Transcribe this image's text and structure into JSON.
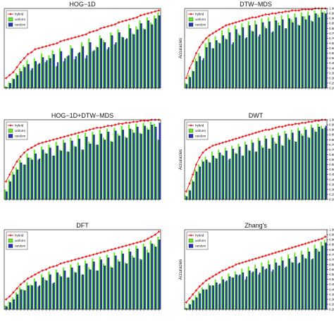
{
  "colors": {
    "hybrid": "#ee2222",
    "uniform": "#66ee22",
    "random": "#2233bb",
    "dark": "#1a3d5e"
  },
  "chart_data": [
    {
      "type": "bar",
      "title": "HOG−1D",
      "ylabel": "",
      "ylim": [
        0.2,
        1.0
      ],
      "yticks": [],
      "legend": [
        "hybrid",
        "uniform",
        "random"
      ],
      "legend_position": "top-left",
      "series": [
        {
          "name": "hybrid",
          "kind": "line",
          "values": [
            0.3,
            0.33,
            0.36,
            0.41,
            0.46,
            0.5,
            0.54,
            0.56,
            0.59,
            0.6,
            0.61,
            0.62,
            0.63,
            0.64,
            0.65,
            0.67,
            0.68,
            0.69,
            0.7,
            0.71,
            0.72,
            0.73,
            0.74,
            0.76,
            0.77,
            0.78,
            0.8,
            0.81,
            0.82,
            0.83,
            0.84,
            0.86,
            0.87,
            0.88,
            0.89,
            0.9,
            0.91,
            0.93,
            0.94,
            0.95,
            0.96,
            0.97,
            0.98
          ]
        },
        {
          "name": "uniform",
          "kind": "bar",
          "values": [
            0.22,
            0.26,
            0.3,
            0.35,
            0.4,
            0.43,
            0.48,
            0.38,
            0.5,
            0.44,
            0.55,
            0.46,
            0.53,
            0.58,
            0.42,
            0.6,
            0.47,
            0.52,
            0.63,
            0.49,
            0.55,
            0.66,
            0.5,
            0.7,
            0.57,
            0.62,
            0.73,
            0.68,
            0.59,
            0.76,
            0.64,
            0.79,
            0.72,
            0.69,
            0.84,
            0.75,
            0.82,
            0.88,
            0.8,
            0.91,
            0.86,
            0.93,
            0.96
          ]
        },
        {
          "name": "random",
          "kind": "bar",
          "values": [
            0.21,
            0.25,
            0.29,
            0.33,
            0.37,
            0.41,
            0.44,
            0.4,
            0.47,
            0.45,
            0.51,
            0.48,
            0.5,
            0.54,
            0.46,
            0.57,
            0.5,
            0.53,
            0.6,
            0.52,
            0.56,
            0.62,
            0.53,
            0.66,
            0.58,
            0.61,
            0.7,
            0.66,
            0.61,
            0.73,
            0.66,
            0.76,
            0.71,
            0.7,
            0.8,
            0.74,
            0.79,
            0.85,
            0.79,
            0.88,
            0.84,
            0.9,
            0.93
          ]
        }
      ]
    },
    {
      "type": "bar",
      "title": "DTW−MDS",
      "ylabel": "Accuracies",
      "ylim": [
        0.2,
        1.0
      ],
      "yticks": [
        "0.20",
        "0.25",
        "0.30",
        "0.35",
        "0.40",
        "0.45",
        "0.50",
        "0.55",
        "0.60",
        "0.65",
        "0.70",
        "0.75",
        "0.80",
        "0.85",
        "0.90",
        "0.95",
        "1.00"
      ],
      "legend": [
        "hybrid",
        "uniform",
        "random"
      ],
      "legend_position": "top-left",
      "series": [
        {
          "name": "hybrid",
          "kind": "line",
          "values": [
            0.3,
            0.4,
            0.47,
            0.55,
            0.61,
            0.66,
            0.7,
            0.73,
            0.75,
            0.77,
            0.79,
            0.81,
            0.83,
            0.84,
            0.85,
            0.86,
            0.87,
            0.88,
            0.89,
            0.9,
            0.91,
            0.91,
            0.92,
            0.93,
            0.94,
            0.94,
            0.95,
            0.95,
            0.96,
            0.96,
            0.97,
            0.97,
            0.98,
            0.98,
            0.98,
            0.99,
            0.99,
            0.99,
            0.99,
            1.0,
            1.0,
            1.0,
            1.0
          ]
        },
        {
          "name": "uniform",
          "kind": "bar",
          "values": [
            0.25,
            0.33,
            0.38,
            0.5,
            0.55,
            0.48,
            0.65,
            0.7,
            0.6,
            0.72,
            0.66,
            0.78,
            0.7,
            0.8,
            0.64,
            0.83,
            0.75,
            0.85,
            0.7,
            0.87,
            0.78,
            0.88,
            0.72,
            0.9,
            0.82,
            0.91,
            0.76,
            0.92,
            0.86,
            0.93,
            0.8,
            0.94,
            0.89,
            0.95,
            0.84,
            0.96,
            0.92,
            0.97,
            0.88,
            0.98,
            0.94,
            0.99,
            0.97
          ]
        },
        {
          "name": "random",
          "kind": "bar",
          "values": [
            0.24,
            0.31,
            0.37,
            0.47,
            0.52,
            0.5,
            0.61,
            0.66,
            0.6,
            0.68,
            0.65,
            0.73,
            0.69,
            0.76,
            0.66,
            0.79,
            0.73,
            0.81,
            0.71,
            0.83,
            0.77,
            0.84,
            0.74,
            0.86,
            0.8,
            0.87,
            0.77,
            0.88,
            0.83,
            0.89,
            0.8,
            0.9,
            0.86,
            0.91,
            0.83,
            0.92,
            0.89,
            0.93,
            0.87,
            0.95,
            0.91,
            0.96,
            0.95
          ]
        }
      ]
    },
    {
      "type": "bar",
      "title": "HOG−1D+DTW−MDS",
      "ylabel": "",
      "ylim": [
        0.2,
        1.0
      ],
      "yticks": [],
      "legend": [
        "hybrid",
        "uniform",
        "random"
      ],
      "legend_position": "top-left",
      "series": [
        {
          "name": "hybrid",
          "kind": "line",
          "values": [
            0.38,
            0.45,
            0.52,
            0.58,
            0.63,
            0.67,
            0.7,
            0.72,
            0.74,
            0.76,
            0.77,
            0.78,
            0.79,
            0.8,
            0.81,
            0.82,
            0.83,
            0.84,
            0.85,
            0.86,
            0.87,
            0.88,
            0.89,
            0.9,
            0.91,
            0.92,
            0.92,
            0.93,
            0.94,
            0.94,
            0.95,
            0.96,
            0.96,
            0.97,
            0.97,
            0.98,
            0.98,
            0.99,
            0.99,
            0.99,
            1.0,
            1.0,
            1.0
          ]
        },
        {
          "name": "uniform",
          "kind": "bar",
          "values": [
            0.3,
            0.4,
            0.48,
            0.52,
            0.6,
            0.55,
            0.66,
            0.62,
            0.7,
            0.6,
            0.73,
            0.67,
            0.75,
            0.64,
            0.78,
            0.7,
            0.8,
            0.68,
            0.82,
            0.74,
            0.85,
            0.7,
            0.87,
            0.78,
            0.88,
            0.75,
            0.9,
            0.82,
            0.91,
            0.79,
            0.92,
            0.86,
            0.94,
            0.83,
            0.95,
            0.9,
            0.96,
            0.87,
            0.97,
            0.92,
            0.98,
            0.96,
            0.8
          ]
        },
        {
          "name": "random",
          "kind": "bar",
          "values": [
            0.28,
            0.38,
            0.45,
            0.5,
            0.57,
            0.55,
            0.62,
            0.6,
            0.66,
            0.61,
            0.7,
            0.66,
            0.72,
            0.64,
            0.74,
            0.69,
            0.77,
            0.68,
            0.79,
            0.73,
            0.81,
            0.7,
            0.83,
            0.76,
            0.85,
            0.75,
            0.86,
            0.8,
            0.88,
            0.78,
            0.89,
            0.84,
            0.9,
            0.82,
            0.91,
            0.87,
            0.93,
            0.86,
            0.94,
            0.9,
            0.95,
            0.93,
            0.97
          ]
        }
      ]
    },
    {
      "type": "bar",
      "title": "DWT",
      "ylabel": "Accuracies",
      "ylim": [
        0.2,
        1.0
      ],
      "yticks": [
        "0.20",
        "0.25",
        "0.30",
        "0.35",
        "0.40",
        "0.45",
        "0.50",
        "0.55",
        "0.60",
        "0.65",
        "0.70",
        "0.75",
        "0.80",
        "0.85",
        "0.90",
        "0.95",
        "1.00"
      ],
      "legend": [
        "hybrid",
        "uniform",
        "random"
      ],
      "legend_position": "top-left",
      "series": [
        {
          "name": "hybrid",
          "kind": "line",
          "values": [
            0.28,
            0.36,
            0.45,
            0.55,
            0.62,
            0.67,
            0.7,
            0.72,
            0.74,
            0.75,
            0.76,
            0.77,
            0.78,
            0.79,
            0.8,
            0.81,
            0.82,
            0.83,
            0.84,
            0.85,
            0.86,
            0.87,
            0.88,
            0.89,
            0.9,
            0.9,
            0.91,
            0.92,
            0.93,
            0.93,
            0.94,
            0.95,
            0.95,
            0.96,
            0.96,
            0.97,
            0.97,
            0.98,
            0.98,
            0.99,
            0.99,
            1.0,
            1.0
          ]
        },
        {
          "name": "uniform",
          "kind": "bar",
          "values": [
            0.24,
            0.3,
            0.4,
            0.5,
            0.55,
            0.6,
            0.63,
            0.58,
            0.68,
            0.62,
            0.7,
            0.65,
            0.72,
            0.6,
            0.74,
            0.67,
            0.76,
            0.64,
            0.78,
            0.7,
            0.8,
            0.68,
            0.82,
            0.74,
            0.84,
            0.71,
            0.85,
            0.78,
            0.87,
            0.75,
            0.89,
            0.82,
            0.9,
            0.79,
            0.92,
            0.86,
            0.93,
            0.83,
            0.95,
            0.9,
            0.96,
            0.94,
            0.92
          ]
        },
        {
          "name": "random",
          "kind": "bar",
          "values": [
            0.23,
            0.29,
            0.38,
            0.48,
            0.53,
            0.58,
            0.6,
            0.57,
            0.64,
            0.61,
            0.67,
            0.64,
            0.69,
            0.61,
            0.71,
            0.66,
            0.73,
            0.64,
            0.75,
            0.69,
            0.77,
            0.68,
            0.79,
            0.72,
            0.81,
            0.71,
            0.82,
            0.76,
            0.84,
            0.74,
            0.86,
            0.8,
            0.87,
            0.78,
            0.89,
            0.84,
            0.9,
            0.82,
            0.92,
            0.88,
            0.93,
            0.91,
            0.94
          ]
        }
      ]
    },
    {
      "type": "bar",
      "title": "DFT",
      "ylabel": "",
      "ylim": [
        0.2,
        1.0
      ],
      "yticks": [],
      "legend": [
        "hybrid",
        "uniform",
        "random"
      ],
      "legend_position": "top-left",
      "series": [
        {
          "name": "hybrid",
          "kind": "line",
          "values": [
            0.3,
            0.33,
            0.37,
            0.41,
            0.45,
            0.48,
            0.51,
            0.53,
            0.55,
            0.57,
            0.59,
            0.6,
            0.62,
            0.63,
            0.64,
            0.66,
            0.67,
            0.68,
            0.69,
            0.7,
            0.71,
            0.72,
            0.73,
            0.74,
            0.75,
            0.76,
            0.77,
            0.78,
            0.79,
            0.8,
            0.81,
            0.82,
            0.83,
            0.84,
            0.85,
            0.86,
            0.87,
            0.88,
            0.89,
            0.91,
            0.93,
            0.95,
            0.98
          ]
        },
        {
          "name": "uniform",
          "kind": "bar",
          "values": [
            0.24,
            0.28,
            0.32,
            0.37,
            0.42,
            0.4,
            0.47,
            0.45,
            0.51,
            0.43,
            0.55,
            0.5,
            0.58,
            0.46,
            0.6,
            0.55,
            0.62,
            0.52,
            0.65,
            0.58,
            0.67,
            0.55,
            0.69,
            0.62,
            0.71,
            0.59,
            0.73,
            0.66,
            0.75,
            0.63,
            0.77,
            0.7,
            0.79,
            0.67,
            0.81,
            0.74,
            0.84,
            0.71,
            0.86,
            0.8,
            0.89,
            0.85,
            0.93
          ]
        },
        {
          "name": "random",
          "kind": "bar",
          "values": [
            0.23,
            0.27,
            0.3,
            0.35,
            0.4,
            0.39,
            0.44,
            0.44,
            0.48,
            0.44,
            0.52,
            0.49,
            0.55,
            0.47,
            0.57,
            0.53,
            0.59,
            0.52,
            0.62,
            0.57,
            0.64,
            0.55,
            0.66,
            0.6,
            0.68,
            0.59,
            0.7,
            0.64,
            0.72,
            0.62,
            0.74,
            0.68,
            0.76,
            0.66,
            0.78,
            0.72,
            0.81,
            0.7,
            0.83,
            0.77,
            0.86,
            0.83,
            0.9
          ]
        }
      ]
    },
    {
      "type": "bar",
      "title": "Zhang's",
      "ylabel": "Accuracies",
      "ylim": [
        0.2,
        1.0
      ],
      "yticks": [
        "0.20",
        "0.25",
        "0.30",
        "0.35",
        "0.40",
        "0.45",
        "0.50",
        "0.55",
        "0.60",
        "0.65",
        "0.70",
        "0.75",
        "0.80",
        "0.85",
        "0.90",
        "0.95",
        "1.00"
      ],
      "legend": [
        "hybrid",
        "uniform",
        "random"
      ],
      "legend_position": "top-left",
      "series": [
        {
          "name": "hybrid",
          "kind": "line",
          "values": [
            0.27,
            0.31,
            0.35,
            0.39,
            0.43,
            0.46,
            0.49,
            0.51,
            0.53,
            0.55,
            0.57,
            0.59,
            0.6,
            0.62,
            0.63,
            0.65,
            0.66,
            0.67,
            0.68,
            0.69,
            0.7,
            0.71,
            0.72,
            0.73,
            0.74,
            0.75,
            0.76,
            0.77,
            0.78,
            0.79,
            0.8,
            0.81,
            0.82,
            0.83,
            0.84,
            0.85,
            0.86,
            0.87,
            0.88,
            0.89,
            0.9,
            0.91,
            0.93
          ]
        },
        {
          "name": "uniform",
          "kind": "bar",
          "values": [
            0.22,
            0.26,
            0.3,
            0.34,
            0.38,
            0.42,
            0.4,
            0.46,
            0.44,
            0.5,
            0.45,
            0.53,
            0.48,
            0.56,
            0.52,
            0.58,
            0.54,
            0.61,
            0.5,
            0.63,
            0.57,
            0.65,
            0.55,
            0.67,
            0.6,
            0.69,
            0.58,
            0.71,
            0.64,
            0.73,
            0.62,
            0.75,
            0.68,
            0.77,
            0.66,
            0.79,
            0.72,
            0.82,
            0.7,
            0.85,
            0.8,
            0.88,
            0.9
          ]
        },
        {
          "name": "random",
          "kind": "bar",
          "values": [
            0.21,
            0.25,
            0.29,
            0.32,
            0.36,
            0.4,
            0.4,
            0.44,
            0.44,
            0.47,
            0.46,
            0.5,
            0.49,
            0.53,
            0.52,
            0.55,
            0.55,
            0.57,
            0.53,
            0.59,
            0.58,
            0.61,
            0.57,
            0.63,
            0.61,
            0.65,
            0.6,
            0.67,
            0.64,
            0.69,
            0.63,
            0.71,
            0.67,
            0.73,
            0.67,
            0.75,
            0.71,
            0.78,
            0.71,
            0.81,
            0.78,
            0.84,
            0.87
          ]
        }
      ]
    }
  ]
}
